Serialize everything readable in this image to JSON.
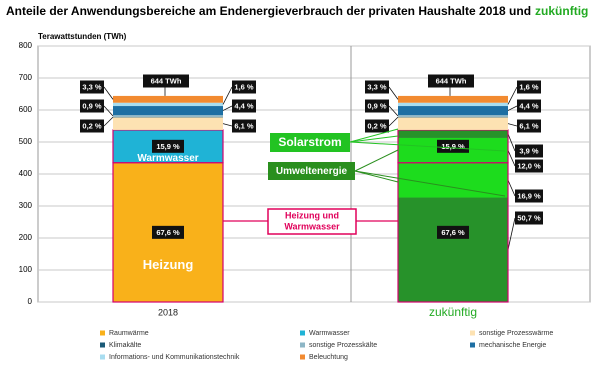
{
  "chart_data": {
    "type": "stacked_bar",
    "title": "Anteile der Anwendungsbereiche am Endenergieverbrauch der privaten Haushalte 2018 und",
    "title_highlight": "zukünftig",
    "highlight_color": "#22aa22",
    "y_label": "Terawattstunden (TWh)",
    "categories": [
      "2018",
      "zukünftig"
    ],
    "ylim": [
      0,
      800
    ],
    "yticks": [
      0,
      100,
      200,
      300,
      400,
      500,
      600,
      700,
      800
    ],
    "grid": true,
    "total": 644,
    "total_label": "644 TWh",
    "outline_color": "#d4006f",
    "series": [
      {
        "name": "Raumwärme",
        "color": "#f9b11a",
        "values": [
          435.3,
          435.3
        ],
        "share_label": "67,6 %",
        "inner_label": "Heizung",
        "split": [
          {
            "color": "#27922a",
            "values": [
              null,
              326.5
            ],
            "share_label": "50,7 %"
          },
          {
            "color": "#1ddc1d",
            "values": [
              null,
              108.8
            ],
            "share_label": "16,9 %"
          }
        ]
      },
      {
        "name": "Warmwasser",
        "color": "#1fb3d6",
        "values": [
          102.4,
          102.4
        ],
        "share_label": "15,9 %",
        "inner_label": "Warmwasser",
        "split": [
          {
            "color": "#1ddc1d",
            "values": [
              null,
              77.3
            ],
            "share_label": "12,0 %"
          },
          {
            "color": "#27922a",
            "values": [
              null,
              25.1
            ],
            "share_label": "3,9 %"
          }
        ]
      },
      {
        "name": "sonstige Prozesswärme",
        "color": "#fde2b2",
        "values": [
          39.3,
          39.3
        ],
        "share_label": "6,1 %"
      },
      {
        "name": "Klimakälte",
        "color": "#1b5a77",
        "values": [
          1.3,
          1.3
        ],
        "share_label": "0,2 %"
      },
      {
        "name": "sonstige Prozesskälte",
        "color": "#8db6c6",
        "values": [
          5.8,
          5.8
        ],
        "share_label": "0,9 %"
      },
      {
        "name": "mechanische Energie",
        "color": "#1d6fa3",
        "values": [
          28.3,
          28.3
        ],
        "share_label": "4,4 %"
      },
      {
        "name": "Informations- und Kommunikationstechnik",
        "color": "#a8ddf0",
        "values": [
          10.3,
          10.3
        ],
        "share_label": "1,6 %"
      },
      {
        "name": "Beleuchtung",
        "color": "#f28a30",
        "values": [
          21.3,
          21.3
        ],
        "share_label": "3,3 %"
      }
    ],
    "annotations": [
      {
        "text": "Solarstrom",
        "color": "#22c322"
      },
      {
        "text": "Umweltenergie",
        "color": "#2a8f1e"
      },
      {
        "lines": [
          "Heizung und",
          "Warmwasser"
        ],
        "color": "#e0005a"
      }
    ]
  }
}
